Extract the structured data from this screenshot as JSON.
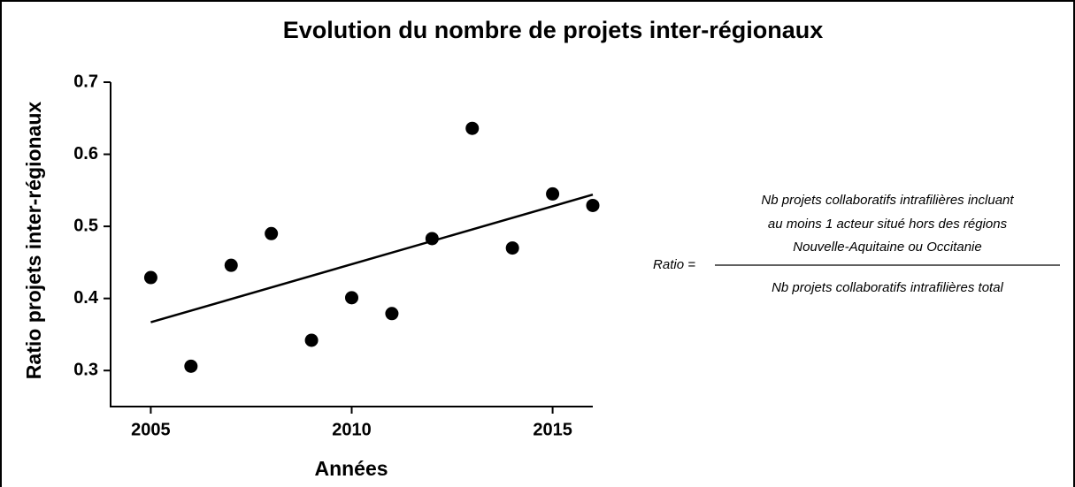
{
  "chart_data": {
    "type": "scatter",
    "title": "Evolution du nombre de projets inter-régionaux",
    "xlabel": "Années",
    "ylabel": "Ratio projets inter-régionaux",
    "x": [
      2005,
      2006,
      2007,
      2008,
      2009,
      2010,
      2011,
      2012,
      2013,
      2014,
      2015,
      2016
    ],
    "values": [
      0.429,
      0.306,
      0.446,
      0.49,
      0.342,
      0.401,
      0.379,
      0.483,
      0.636,
      0.47,
      0.545,
      0.529
    ],
    "color": "#000000",
    "trendline": {
      "x": [
        2005,
        2016
      ],
      "values": [
        0.367,
        0.544
      ],
      "color": "#000000"
    },
    "xlim": [
      2004,
      2016
    ],
    "xticks": [
      2005,
      2010,
      2015
    ],
    "ylim": [
      0.25,
      0.7
    ],
    "yticks": [
      0.3,
      0.4,
      0.5,
      0.6,
      0.7
    ],
    "grid": false,
    "annotation": {
      "prefix": "Ratio =",
      "numerator": [
        "Nb projets collaboratifs intrafilières incluant",
        "au moins 1 acteur situé hors des régions",
        "Nouvelle-Aquitaine ou Occitanie"
      ],
      "denominator": "Nb projets collaboratifs intrafilières total"
    }
  }
}
